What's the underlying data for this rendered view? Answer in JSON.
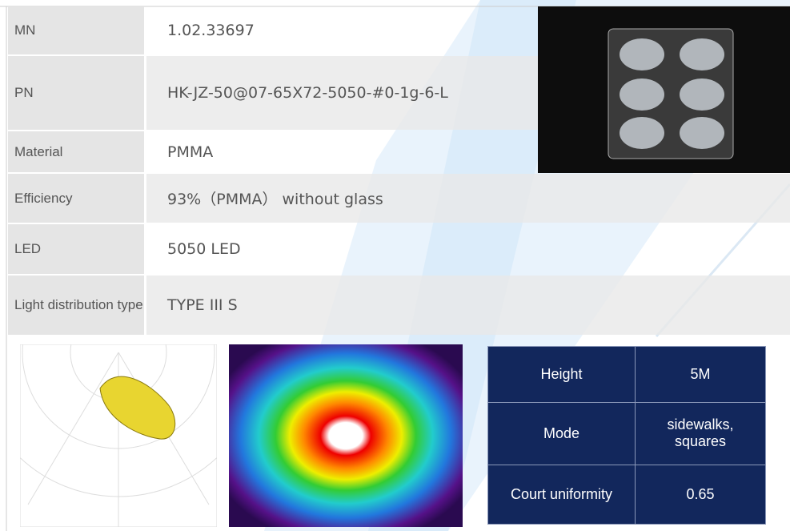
{
  "spec": {
    "rows": [
      [
        "MN",
        "1.02.33697"
      ],
      [
        "PN",
        "HK-JZ-50@07-65X72-5050-#0-1g-6-L"
      ],
      [
        "Material",
        "PMMA"
      ],
      [
        "Efficiency",
        "93%（PMMA） without glass"
      ],
      [
        "LED",
        "5050 LED"
      ],
      [
        "Light distribution type",
        "TYPE III S"
      ]
    ]
  },
  "parameters": {
    "rows": [
      [
        "Height",
        "5M"
      ],
      [
        "Mode",
        "sidewalks, squares"
      ],
      [
        "Court uniformity",
        "0.65"
      ]
    ]
  }
}
